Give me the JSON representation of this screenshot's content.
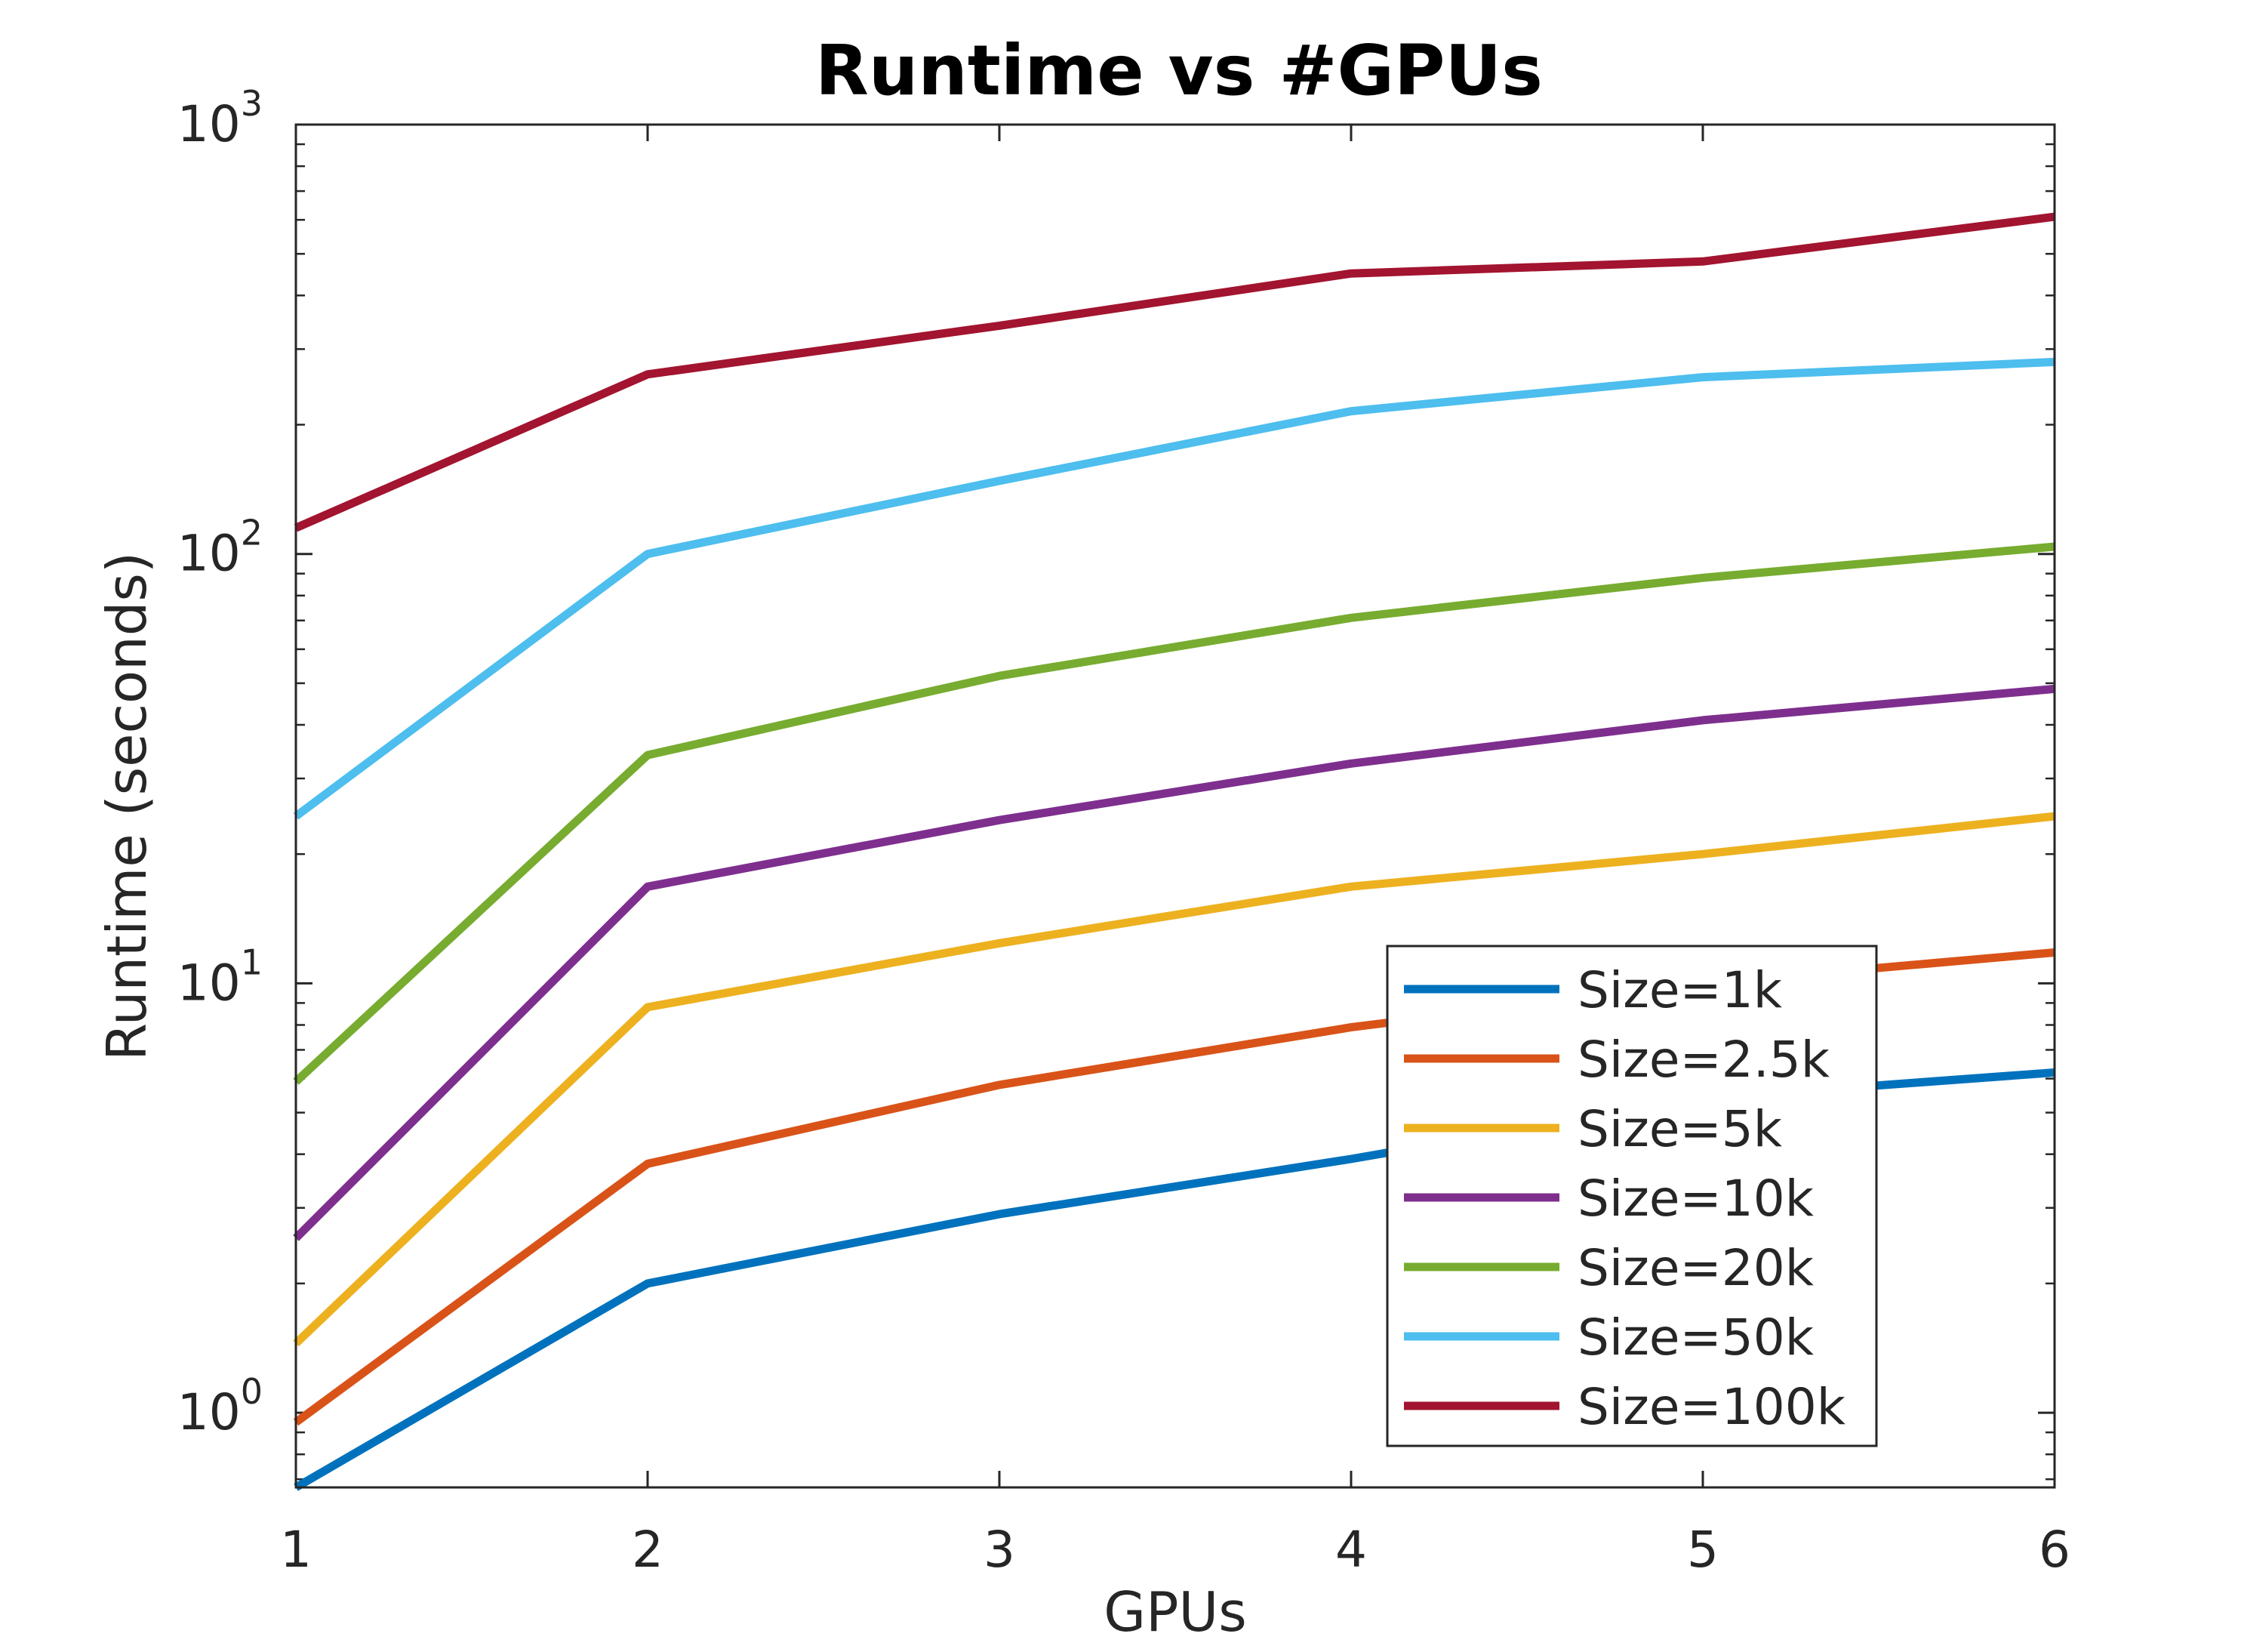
{
  "chart_data": {
    "type": "line",
    "title": "Runtime vs #GPUs",
    "xlabel": "GPUs",
    "ylabel": "Runtime (seconds)",
    "yscale": "log",
    "xlim": [
      1,
      6
    ],
    "ylim": [
      0.67,
      1000
    ],
    "xticks": [
      1,
      2,
      3,
      4,
      5,
      6
    ],
    "yticks": [
      {
        "value": 1,
        "base": "10",
        "exp": "0"
      },
      {
        "value": 10,
        "base": "10",
        "exp": "1"
      },
      {
        "value": 100,
        "base": "10",
        "exp": "2"
      },
      {
        "value": 1000,
        "base": "10",
        "exp": "3"
      }
    ],
    "grid": false,
    "legend_position": "bottom-right",
    "x": [
      1,
      2,
      3,
      4,
      5,
      6
    ],
    "series": [
      {
        "name": "Size=1k",
        "color": "#0072BD",
        "values": [
          0.67,
          2.0,
          2.9,
          3.9,
          5.4,
          6.2
        ]
      },
      {
        "name": "Size=2.5k",
        "color": "#D95319",
        "values": [
          0.95,
          3.8,
          5.8,
          7.9,
          10.0,
          11.8
        ]
      },
      {
        "name": "Size=5k",
        "color": "#EDB120",
        "values": [
          1.45,
          8.8,
          12.4,
          16.8,
          20.0,
          24.5
        ]
      },
      {
        "name": "Size=10k",
        "color": "#7E2F8E",
        "values": [
          2.55,
          16.8,
          24.0,
          32.5,
          41.0,
          48.5
        ]
      },
      {
        "name": "Size=20k",
        "color": "#77AC30",
        "values": [
          5.9,
          34.0,
          52.0,
          71.0,
          88.0,
          104.0
        ]
      },
      {
        "name": "Size=50k",
        "color": "#4DBEEE",
        "values": [
          24.5,
          100.0,
          148.0,
          215.0,
          258.0,
          280.0
        ]
      },
      {
        "name": "Size=100k",
        "color": "#A2142F",
        "values": [
          115.0,
          262.0,
          340.0,
          450.0,
          480.0,
          610.0
        ]
      }
    ]
  }
}
